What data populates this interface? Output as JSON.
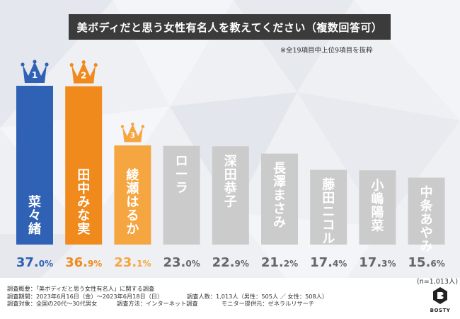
{
  "title": "美ボディだと思う女性有名人を教えてください（複数回答可）",
  "note": "※全19項目中上位9項目を抜粋",
  "n_note": "(n=1,013人)",
  "survey": {
    "overview": "調査概要：「美ボディだと思う女性有名人」に関する調査",
    "period": "調査期間：2023年6月16日（金）〜2023年6月18日（日）",
    "respondents": "調査人数：1,013人（男性：505人 ／ 女性：508人）",
    "target": "調査対象：全国の20代〜30代男女",
    "method": "調査方法：インターネット調査",
    "provider": "モニター提供元：ゼネラルリサーチ"
  },
  "logo": {
    "text": "BOSTY"
  },
  "colors": {
    "rank1": "#2f62b5",
    "rank2": "#f08a1c",
    "rank3": "#f5a640",
    "other": "#cbcbcb",
    "crown1": "#2f62b5",
    "crown2": "#f08a1c",
    "crown3": "#f5a640",
    "value_other": "#666666"
  },
  "chart_data": {
    "type": "bar",
    "title": "美ボディだと思う女性有名人を教えてください（複数回答可）",
    "unit": "%",
    "categories": [
      "菜々緒",
      "田中みな実",
      "綾瀬はるか",
      "ローラ",
      "深田恭子",
      "長澤まさみ",
      "藤田ニコル",
      "小嶋陽菜",
      "中条あやみ"
    ],
    "values": [
      37.0,
      36.9,
      23.1,
      23.0,
      22.9,
      21.2,
      17.4,
      17.3,
      15.6
    ],
    "ranks": [
      "1",
      "2",
      "3"
    ],
    "ylim": [
      0,
      37.0
    ]
  }
}
